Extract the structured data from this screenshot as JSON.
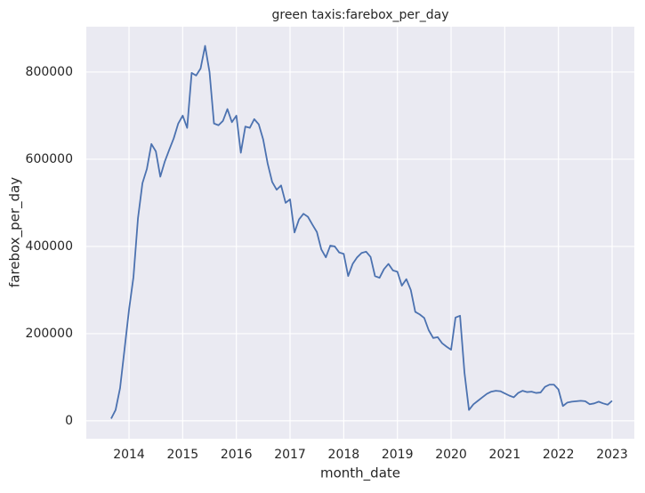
{
  "chart_data": {
    "type": "line",
    "title": "green taxis:farebox_per_day",
    "x_label": "month_date",
    "y_label": "farebox_per_day",
    "x": [
      2013.667,
      2013.75,
      2013.833,
      2013.917,
      2014.0,
      2014.083,
      2014.167,
      2014.25,
      2014.333,
      2014.417,
      2014.5,
      2014.583,
      2014.667,
      2014.75,
      2014.833,
      2014.917,
      2015.0,
      2015.083,
      2015.167,
      2015.25,
      2015.333,
      2015.417,
      2015.5,
      2015.583,
      2015.667,
      2015.75,
      2015.833,
      2015.917,
      2016.0,
      2016.083,
      2016.167,
      2016.25,
      2016.333,
      2016.417,
      2016.5,
      2016.583,
      2016.667,
      2016.75,
      2016.833,
      2016.917,
      2017.0,
      2017.083,
      2017.167,
      2017.25,
      2017.333,
      2017.417,
      2017.5,
      2017.583,
      2017.667,
      2017.75,
      2017.833,
      2017.917,
      2018.0,
      2018.083,
      2018.167,
      2018.25,
      2018.333,
      2018.417,
      2018.5,
      2018.583,
      2018.667,
      2018.75,
      2018.833,
      2018.917,
      2019.0,
      2019.083,
      2019.167,
      2019.25,
      2019.333,
      2019.417,
      2019.5,
      2019.583,
      2019.667,
      2019.75,
      2019.833,
      2019.917,
      2020.0,
      2020.083,
      2020.167,
      2020.25,
      2020.333,
      2020.417,
      2020.5,
      2020.583,
      2020.667,
      2020.75,
      2020.833,
      2020.917,
      2021.0,
      2021.083,
      2021.167,
      2021.25,
      2021.333,
      2021.417,
      2021.5,
      2021.583,
      2021.667,
      2021.75,
      2021.833,
      2021.917,
      2022.0,
      2022.083,
      2022.167,
      2022.25,
      2022.333,
      2022.417,
      2022.5,
      2022.583,
      2022.667,
      2022.75,
      2022.833,
      2022.917,
      2023.0
    ],
    "series": [
      {
        "name": "farebox_per_day",
        "color": "#4c72b0",
        "values": [
          5000,
          25000,
          75000,
          165000,
          255000,
          330000,
          465000,
          545000,
          578000,
          635000,
          618000,
          560000,
          595000,
          622000,
          648000,
          682000,
          700000,
          672000,
          798000,
          792000,
          808000,
          860000,
          800000,
          682000,
          678000,
          688000,
          715000,
          685000,
          700000,
          615000,
          675000,
          672000,
          692000,
          680000,
          645000,
          590000,
          548000,
          530000,
          540000,
          500000,
          508000,
          432000,
          462000,
          475000,
          468000,
          450000,
          433000,
          393000,
          375000,
          402000,
          400000,
          386000,
          383000,
          332000,
          360000,
          375000,
          385000,
          388000,
          376000,
          332000,
          328000,
          348000,
          360000,
          345000,
          342000,
          310000,
          325000,
          300000,
          250000,
          244000,
          236000,
          208000,
          190000,
          192000,
          178000,
          170000,
          163000,
          237000,
          241000,
          110000,
          25000,
          38000,
          46000,
          54000,
          62000,
          67000,
          69000,
          68000,
          63000,
          58000,
          54000,
          64000,
          69000,
          66000,
          67000,
          64000,
          65000,
          78000,
          83000,
          83000,
          72000,
          34000,
          42000,
          44000,
          45000,
          46000,
          45000,
          38000,
          40000,
          44000,
          40000,
          37000,
          46000
        ]
      }
    ],
    "xlim": [
      2013.204,
      2023.414
    ],
    "xticks": [
      2014,
      2015,
      2016,
      2017,
      2018,
      2019,
      2020,
      2021,
      2022,
      2023
    ],
    "ylim": [
      -41000,
      904000
    ],
    "yticks": [
      0,
      200000,
      400000,
      600000,
      800000
    ],
    "grid": true
  }
}
